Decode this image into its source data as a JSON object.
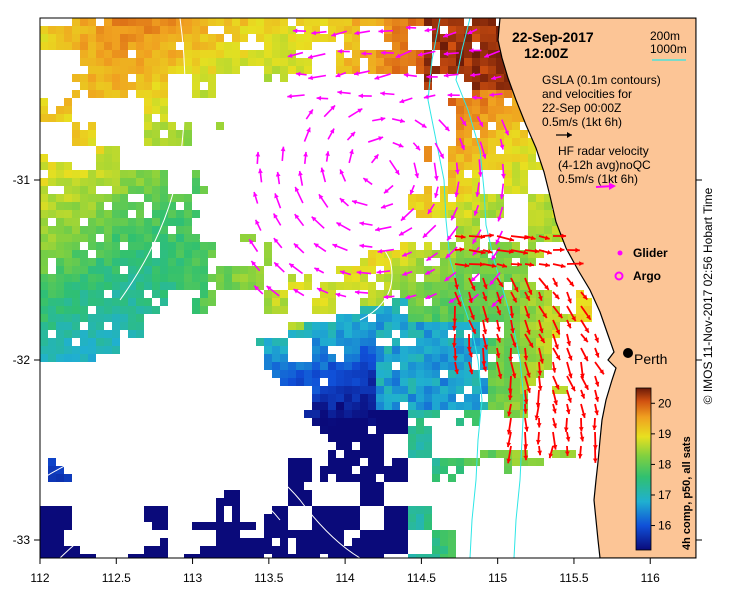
{
  "header": {
    "date": "22-Sep-2017",
    "time": "12:00Z"
  },
  "bathymetry_legend": {
    "line1": "200m",
    "line2": "1000m"
  },
  "gsla_note": {
    "line1": "GSLA (0.1m contours)",
    "line2": "and velocities for",
    "line3": "22-Sep 00:00Z",
    "scale": "0.5m/s (1kt 6h)"
  },
  "hf_radar_note": {
    "line1": "HF radar velocity",
    "line2": "(4-12h avg)noQC",
    "scale": "0.5m/s (1kt 6h)"
  },
  "markers": {
    "glider": "Glider",
    "argo": "Argo"
  },
  "city": {
    "name": "Perth",
    "lon": 115.86,
    "lat": -31.95
  },
  "colorbar": {
    "label": "4h comp, p50, all sats",
    "ticks": [
      "16",
      "17",
      "18",
      "19",
      "20"
    ],
    "min": 15.2,
    "max": 20.5
  },
  "credit": "© IMOS 11-Nov-2017 02:56 Hobart Time",
  "axes": {
    "x_ticks": [
      "112",
      "112.5",
      "113",
      "113.5",
      "114",
      "114.5",
      "115",
      "115.5",
      "116"
    ],
    "y_ticks": [
      "-31",
      "-32",
      "-33"
    ],
    "lon_range": [
      112,
      116.3
    ],
    "lat_range": [
      -33.1,
      -30.1
    ]
  },
  "colors": {
    "land": "#fcc596",
    "coast": "#000000",
    "isobath": "#2ee6e6",
    "gsla_arrows": "#ff00ff",
    "hf_arrows": "#ff0000",
    "glider_marker": "#ff00ff",
    "argo_marker": "#ff00ff"
  }
}
